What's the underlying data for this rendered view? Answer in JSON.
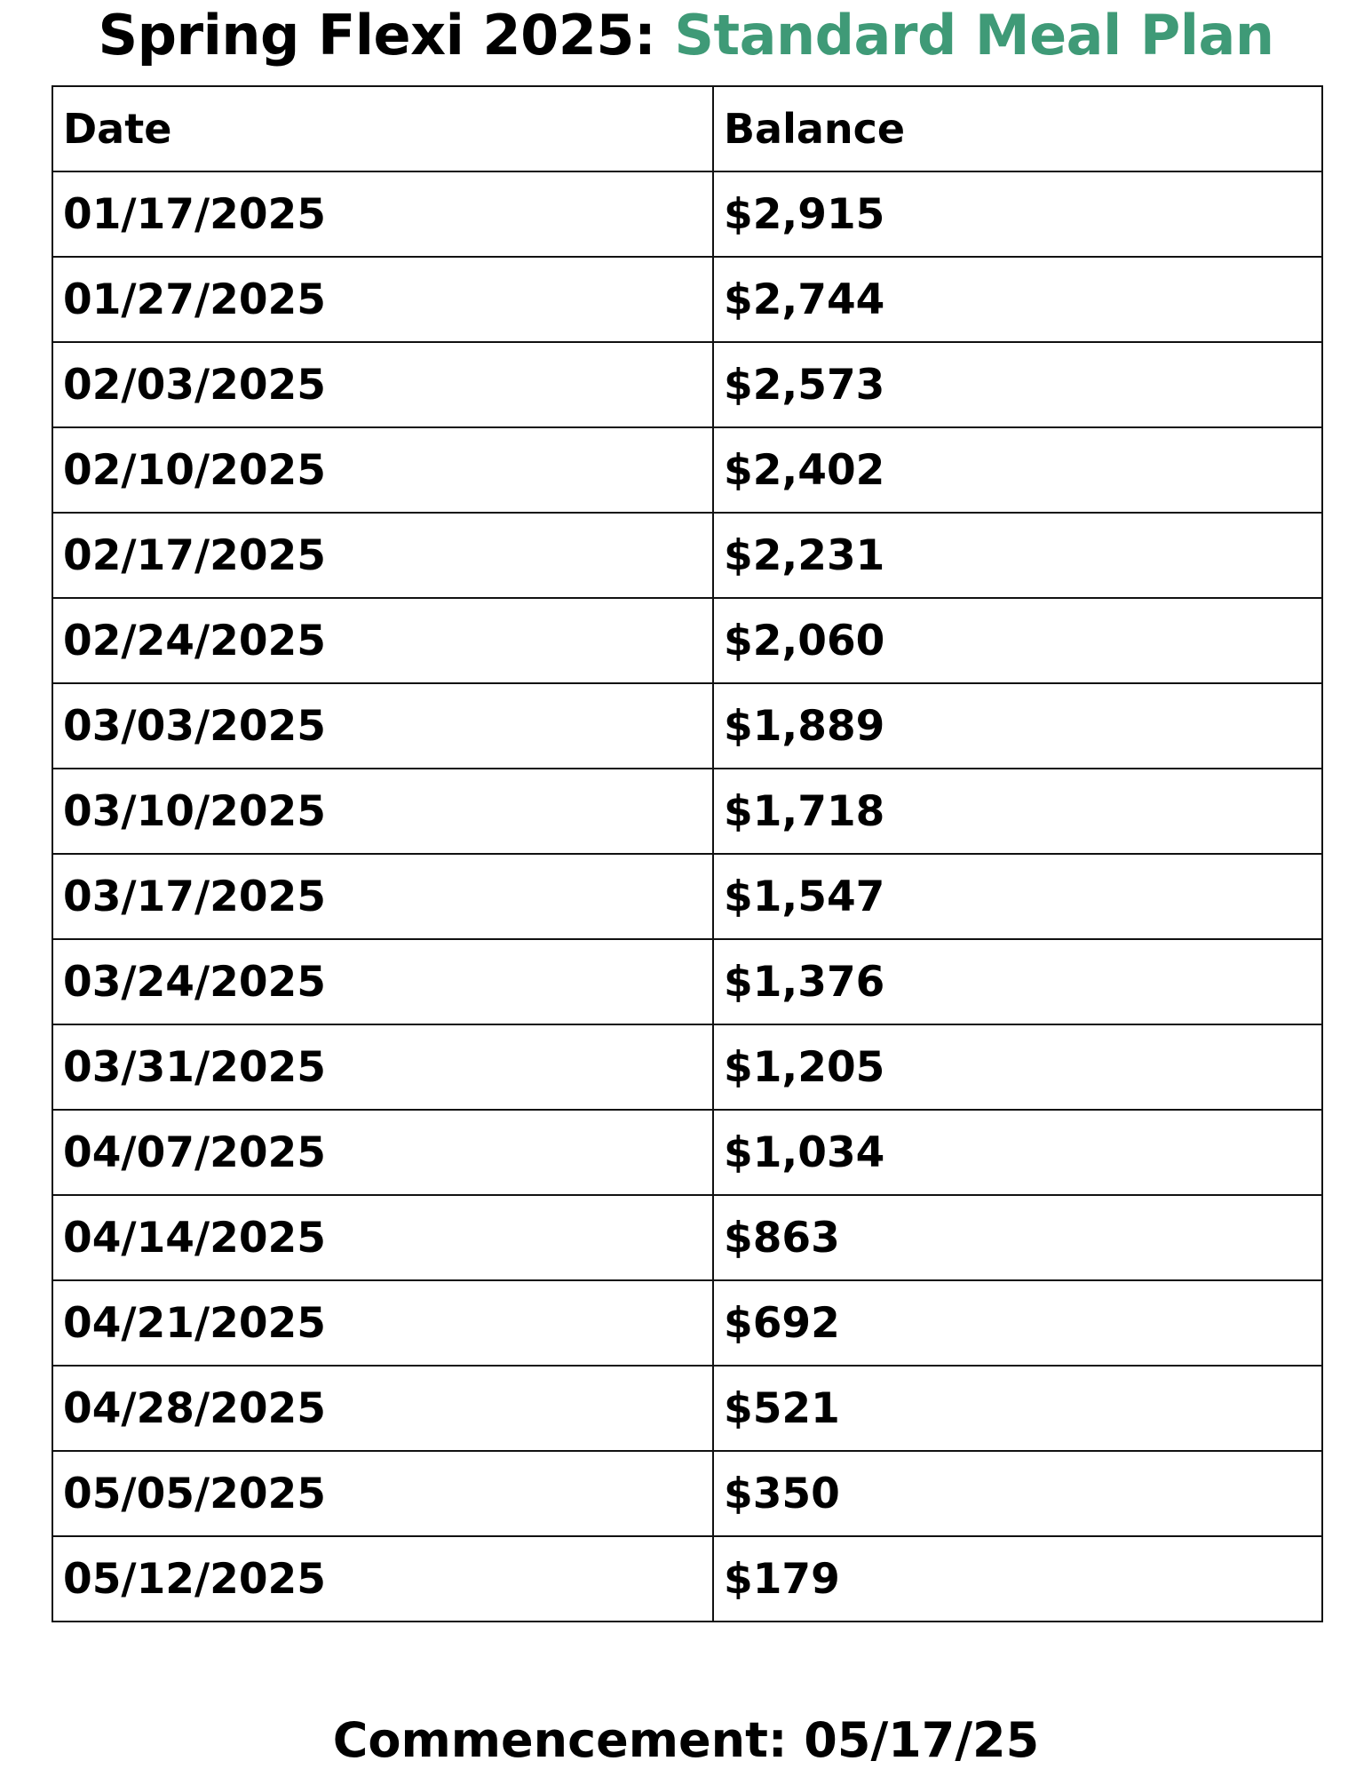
{
  "header": {
    "title_prefix": "Spring Flexi 2025: ",
    "title_accent": "Standard Meal Plan",
    "accent_color": "#3f9a77"
  },
  "table": {
    "columns": [
      "Date",
      "Balance"
    ],
    "rows": [
      {
        "date": "01/17/2025",
        "balance": "$2,915"
      },
      {
        "date": "01/27/2025",
        "balance": "$2,744"
      },
      {
        "date": "02/03/2025",
        "balance": "$2,573"
      },
      {
        "date": "02/10/2025",
        "balance": "$2,402"
      },
      {
        "date": "02/17/2025",
        "balance": "$2,231"
      },
      {
        "date": "02/24/2025",
        "balance": "$2,060"
      },
      {
        "date": "03/03/2025",
        "balance": "$1,889"
      },
      {
        "date": "03/10/2025",
        "balance": "$1,718"
      },
      {
        "date": "03/17/2025",
        "balance": "$1,547"
      },
      {
        "date": "03/24/2025",
        "balance": "$1,376"
      },
      {
        "date": "03/31/2025",
        "balance": "$1,205"
      },
      {
        "date": "04/07/2025",
        "balance": "$1,034"
      },
      {
        "date": "04/14/2025",
        "balance": "$863"
      },
      {
        "date": "04/21/2025",
        "balance": "$692"
      },
      {
        "date": "04/28/2025",
        "balance": "$521"
      },
      {
        "date": "05/05/2025",
        "balance": "$350"
      },
      {
        "date": "05/12/2025",
        "balance": "$179"
      }
    ]
  },
  "footer": {
    "text": "Commencement: 05/17/25"
  }
}
